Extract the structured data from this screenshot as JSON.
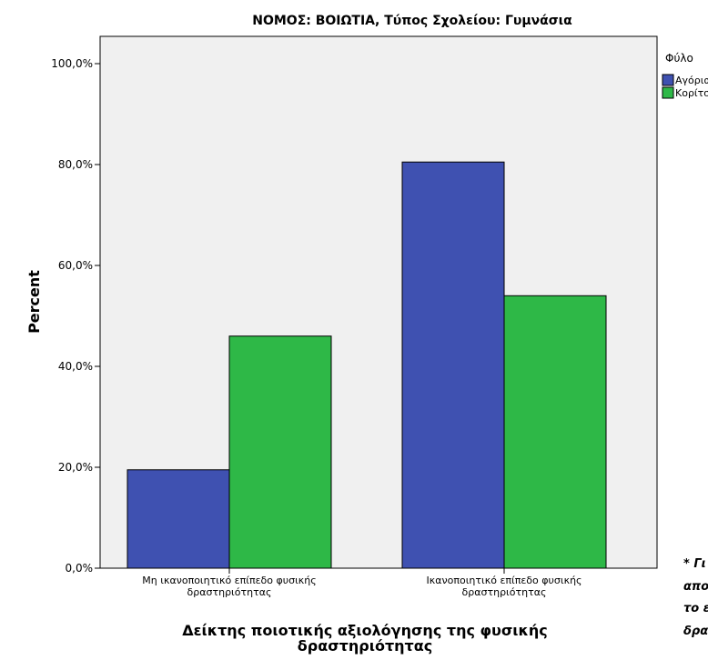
{
  "chart_data": {
    "type": "bar",
    "title": "ΝΟΜΟΣ: ΒΟΙΩΤΙΑ, Τύπος Σχολείου: Γυμνάσια",
    "xlabel": [
      "Δείκτης ποιοτικής αξιολόγησης της φυσικής",
      "δραστηριότητας"
    ],
    "ylabel": "Percent",
    "ylim": [
      0,
      100
    ],
    "yticks": [
      "0,0%",
      "20,0%",
      "40,0%",
      "60,0%",
      "80,0%",
      "100,0%"
    ],
    "grid": false,
    "legend_position": "top-right",
    "legend_title": "Φύλο",
    "categories": [
      [
        "Μη ικανοποιητικό επίπεδο φυσικής",
        "δραστηριότητας"
      ],
      [
        "Ικανοποιητικό επίπεδο φυσικής",
        "δραστηριότητας"
      ]
    ],
    "series": [
      {
        "name": "Αγόρια",
        "color": "#3f51b1",
        "values": [
          19.5,
          80.5
        ]
      },
      {
        "name": "Κορίτσια",
        "color": "#2eb847",
        "values": [
          46.0,
          54.0
        ]
      }
    ]
  },
  "side_note": [
    "* Γι",
    "απο",
    "το ε",
    "δρα"
  ]
}
